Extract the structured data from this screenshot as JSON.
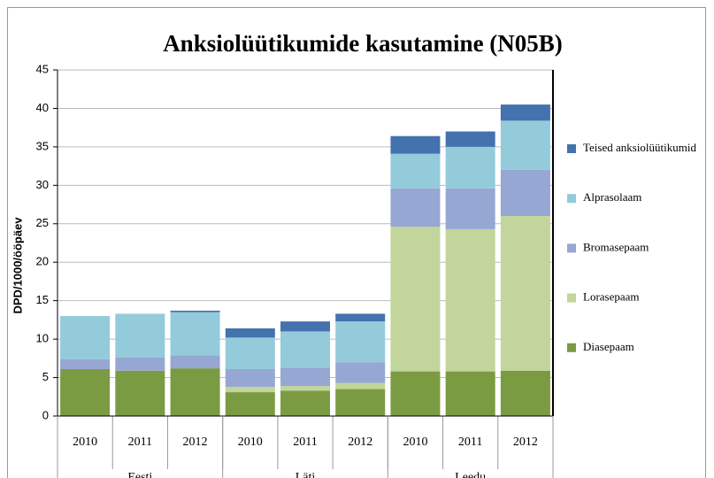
{
  "chart_data": {
    "type": "stacked_bar",
    "title": "Anksiolüütikumide kasutamine (N05B)",
    "y_label": "DPD/1000/ööpäev",
    "categories": [
      "2010",
      "2011",
      "2012",
      "2010",
      "2011",
      "2012",
      "2010",
      "2011",
      "2012"
    ],
    "category_groups": [
      "Eesti",
      "Läti",
      "Leedu"
    ],
    "series": [
      {
        "name": "Diasepaam",
        "color": "#7b9b43",
        "values": [
          6.1,
          5.9,
          6.2,
          3.1,
          3.3,
          3.5,
          5.8,
          5.8,
          5.9
        ]
      },
      {
        "name": "Lorasepaam",
        "color": "#c2d59a",
        "values": [
          0,
          0,
          0,
          0.7,
          0.6,
          0.8,
          18.8,
          18.5,
          20.1
        ]
      },
      {
        "name": "Bromasepaam",
        "color": "#96a7d3",
        "values": [
          1.3,
          1.7,
          1.7,
          2.3,
          2.4,
          2.7,
          5.0,
          5.3,
          6.0
        ]
      },
      {
        "name": "Alprasolaam",
        "color": "#93cbdb",
        "values": [
          5.6,
          5.7,
          5.6,
          4.1,
          4.7,
          5.3,
          4.5,
          5.4,
          6.4
        ]
      },
      {
        "name": "Teised anksiolüütikumid",
        "color": "#4472ae",
        "values": [
          0,
          0,
          0.2,
          1.2,
          1.3,
          1.0,
          2.3,
          2.0,
          2.1
        ]
      }
    ],
    "ylim": [
      0,
      45
    ],
    "yticks": [
      0,
      5,
      10,
      15,
      20,
      25,
      30,
      35,
      40,
      45
    ],
    "grid": true,
    "legend": "right"
  }
}
